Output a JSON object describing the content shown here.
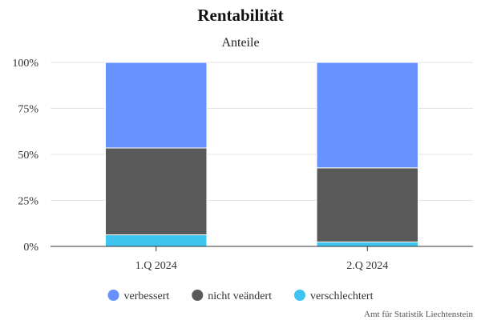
{
  "chart_data": {
    "type": "bar",
    "stacked": true,
    "percent": true,
    "title": "Rentabilität",
    "subtitle": "Anteile",
    "xlabel": "",
    "ylabel": "",
    "categories": [
      "1.Q 2024",
      "2.Q 2024"
    ],
    "series": [
      {
        "name": "verschlechtert",
        "values": [
          6.3,
          2.4
        ],
        "color": "#3ec5ef"
      },
      {
        "name": "nicht veändert",
        "values": [
          47.2,
          40.3
        ],
        "color": "#595959"
      },
      {
        "name": "verbessert",
        "values": [
          46.5,
          57.3
        ],
        "color": "#6691ff"
      }
    ],
    "legend_order": [
      "verbessert",
      "nicht veändert",
      "verschlechtert"
    ],
    "yticks": [
      "0%",
      "25%",
      "50%",
      "75%",
      "100%"
    ],
    "ylim": [
      0,
      100
    ],
    "grid": true,
    "legend_position": "bottom"
  },
  "credit": "Amt für Statistik Liechtenstein"
}
